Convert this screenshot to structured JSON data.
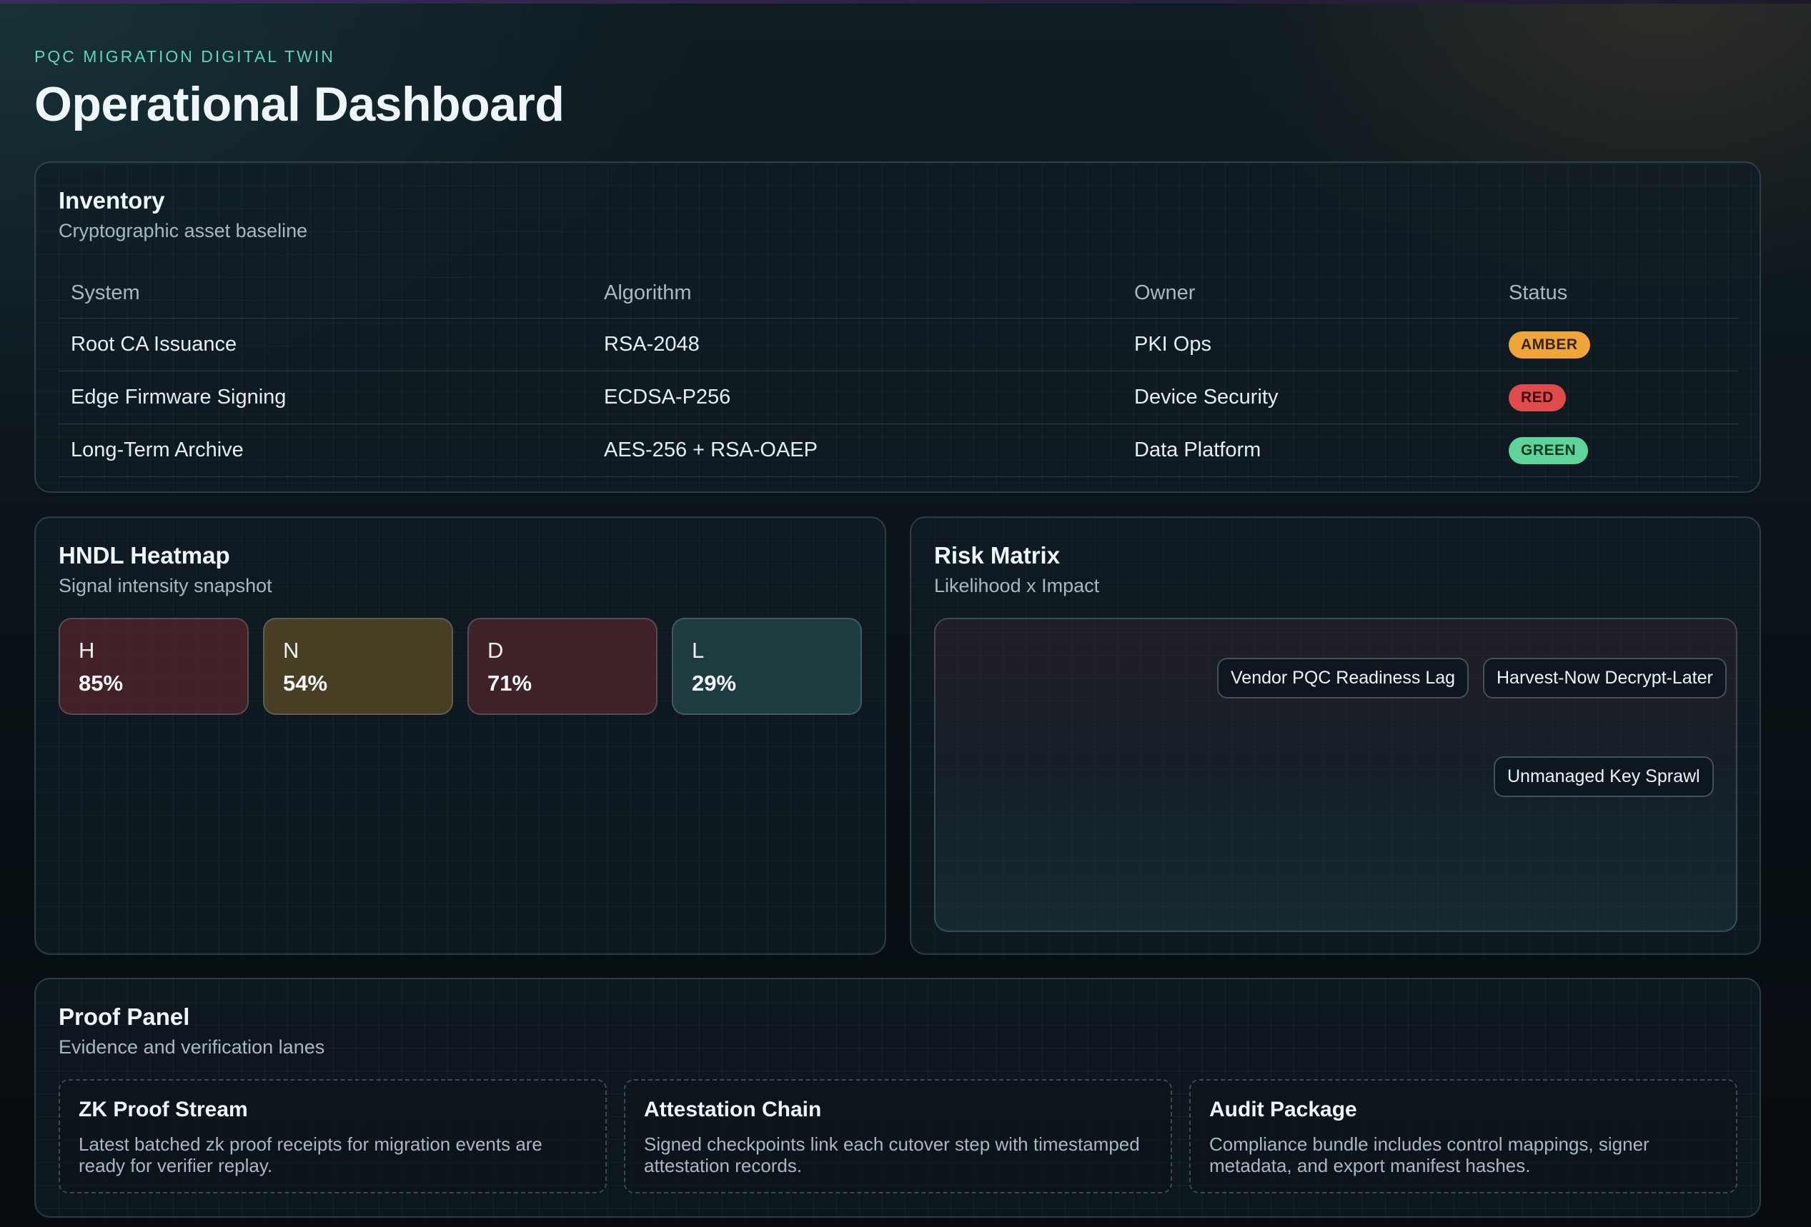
{
  "header": {
    "eyebrow": "PQC MIGRATION DIGITAL TWIN",
    "title": "Operational Dashboard"
  },
  "inventory": {
    "title": "Inventory",
    "subtitle": "Cryptographic asset baseline",
    "columns": [
      "System",
      "Algorithm",
      "Owner",
      "Status"
    ],
    "rows": [
      {
        "system": "Root CA Issuance",
        "algorithm": "RSA-2048",
        "owner": "PKI Ops",
        "status": "AMBER"
      },
      {
        "system": "Edge Firmware Signing",
        "algorithm": "ECDSA-P256",
        "owner": "Device Security",
        "status": "RED"
      },
      {
        "system": "Long-Term Archive",
        "algorithm": "AES-256 + RSA-OAEP",
        "owner": "Data Platform",
        "status": "GREEN"
      }
    ],
    "status_colors": {
      "AMBER": "#f0a53a",
      "RED": "#e04b4b",
      "GREEN": "#5fd49a"
    }
  },
  "heatmap": {
    "title": "HNDL Heatmap",
    "subtitle": "Signal intensity snapshot",
    "tiles": [
      {
        "label": "H",
        "value": "85%"
      },
      {
        "label": "N",
        "value": "54%"
      },
      {
        "label": "D",
        "value": "71%"
      },
      {
        "label": "L",
        "value": "29%"
      }
    ]
  },
  "risk": {
    "title": "Risk Matrix",
    "subtitle": "Likelihood x Impact",
    "items": [
      "Vendor PQC Readiness Lag",
      "Harvest-Now Decrypt-Later",
      "Unmanaged Key Sprawl"
    ]
  },
  "proof": {
    "title": "Proof Panel",
    "subtitle": "Evidence and verification lanes",
    "lanes": [
      {
        "title": "ZK Proof Stream",
        "desc": "Latest batched zk proof receipts for migration events are ready for verifier replay."
      },
      {
        "title": "Attestation Chain",
        "desc": "Signed checkpoints link each cutover step with timestamped attestation records."
      },
      {
        "title": "Audit Package",
        "desc": "Compliance bundle includes control mappings, signer metadata, and export manifest hashes."
      }
    ]
  }
}
